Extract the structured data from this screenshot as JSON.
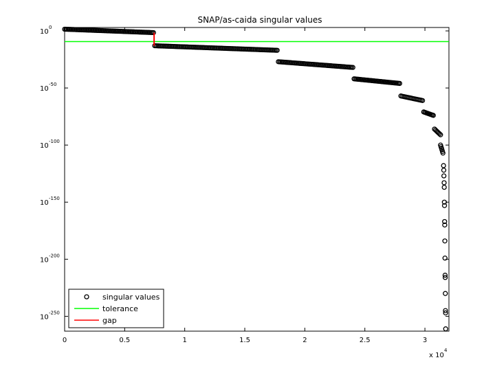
{
  "chart_data": {
    "type": "scatter",
    "title": "SNAP/as-caida singular values",
    "xlabel": "",
    "ylabel": "",
    "x_scale_note": "x 10",
    "x_scale_exp": "4",
    "xlim": [
      0,
      3.2
    ],
    "ylim_log10": [
      -263,
      3
    ],
    "y_scale": "log",
    "grid": false,
    "legend_position": "bottom-left",
    "x_ticks": [
      "0",
      "0.5",
      "1",
      "1.5",
      "2",
      "2.5",
      "3"
    ],
    "x_tick_values": [
      0,
      0.5,
      1,
      1.5,
      2,
      2.5,
      3
    ],
    "y_ticks": [
      {
        "base": "10",
        "exp": "0",
        "log": 0
      },
      {
        "base": "10",
        "exp": "-50",
        "log": -50
      },
      {
        "base": "10",
        "exp": "-100",
        "log": -100
      },
      {
        "base": "10",
        "exp": "-150",
        "log": -150
      },
      {
        "base": "10",
        "exp": "-200",
        "log": -200
      },
      {
        "base": "10",
        "exp": "-250",
        "log": -250
      }
    ],
    "series": [
      {
        "name": "singular values",
        "marker": "circle",
        "color": "#000000",
        "segments": [
          {
            "x_start": 0.0,
            "x_end": 0.74,
            "log_start": 1.5,
            "log_end": -1.5,
            "count": 75
          },
          {
            "x_start": 0.75,
            "x_end": 1.77,
            "log_start": -13,
            "log_end": -17,
            "count": 100
          },
          {
            "x_start": 1.78,
            "x_end": 2.4,
            "log_start": -27,
            "log_end": -32,
            "count": 62
          },
          {
            "x_start": 2.41,
            "x_end": 2.79,
            "log_start": -42,
            "log_end": -46,
            "count": 40
          },
          {
            "x_start": 2.8,
            "x_end": 2.98,
            "log_start": -57,
            "log_end": -61,
            "count": 18
          },
          {
            "x_start": 2.99,
            "x_end": 3.07,
            "log_start": -71,
            "log_end": -74,
            "count": 10
          },
          {
            "x_start": 3.08,
            "x_end": 3.13,
            "log_start": -86,
            "log_end": -91,
            "count": 7
          },
          {
            "x_start": 3.13,
            "x_end": 3.15,
            "log_start": -100,
            "log_end": -107,
            "count": 6
          }
        ],
        "tail_points": [
          [
            3.155,
            -118
          ],
          [
            3.157,
            -122
          ],
          [
            3.158,
            -127
          ],
          [
            3.16,
            -133
          ],
          [
            3.161,
            -137
          ],
          [
            3.162,
            -150
          ],
          [
            3.163,
            -153
          ],
          [
            3.164,
            -167
          ],
          [
            3.165,
            -170
          ],
          [
            3.166,
            -184
          ],
          [
            3.167,
            -199
          ],
          [
            3.168,
            -214
          ],
          [
            3.169,
            -216
          ],
          [
            3.17,
            -230
          ],
          [
            3.171,
            -245
          ],
          [
            3.172,
            -247
          ],
          [
            3.173,
            -261
          ]
        ]
      },
      {
        "name": "tolerance",
        "type": "hline",
        "color": "#00ff00",
        "log_value": -9.3
      },
      {
        "name": "gap",
        "type": "segment",
        "color": "#ff0000",
        "x": 0.745,
        "log_from": -1.5,
        "log_to": -13
      }
    ]
  }
}
